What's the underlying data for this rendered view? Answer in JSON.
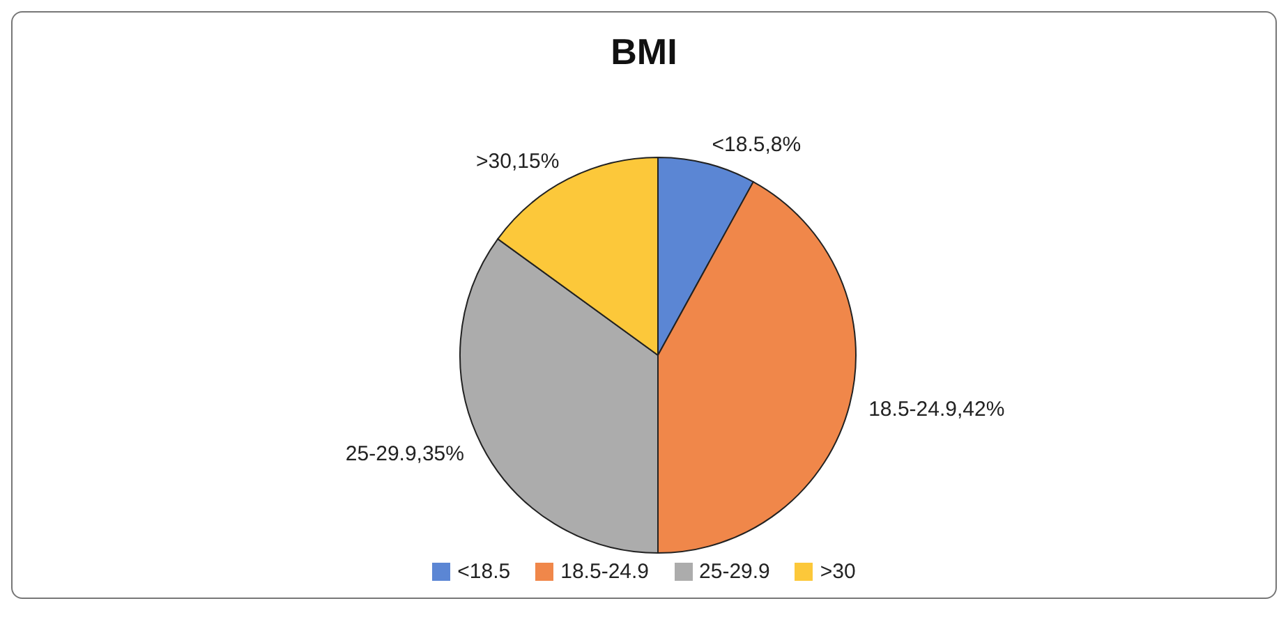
{
  "chart_data": {
    "type": "pie",
    "title": "BMI",
    "categories": [
      "<18.5",
      "18.5-24.9",
      "25-29.9",
      ">30"
    ],
    "values": [
      8,
      42,
      35,
      15
    ],
    "colors": [
      "#5b86d4",
      "#f0874a",
      "#acacac",
      "#fcc83a"
    ],
    "value_labels": [
      "<18.5,8%",
      "18.5-24.9,42%",
      "25-29.9,35%",
      ">30,15%"
    ],
    "legend": "bottom"
  }
}
